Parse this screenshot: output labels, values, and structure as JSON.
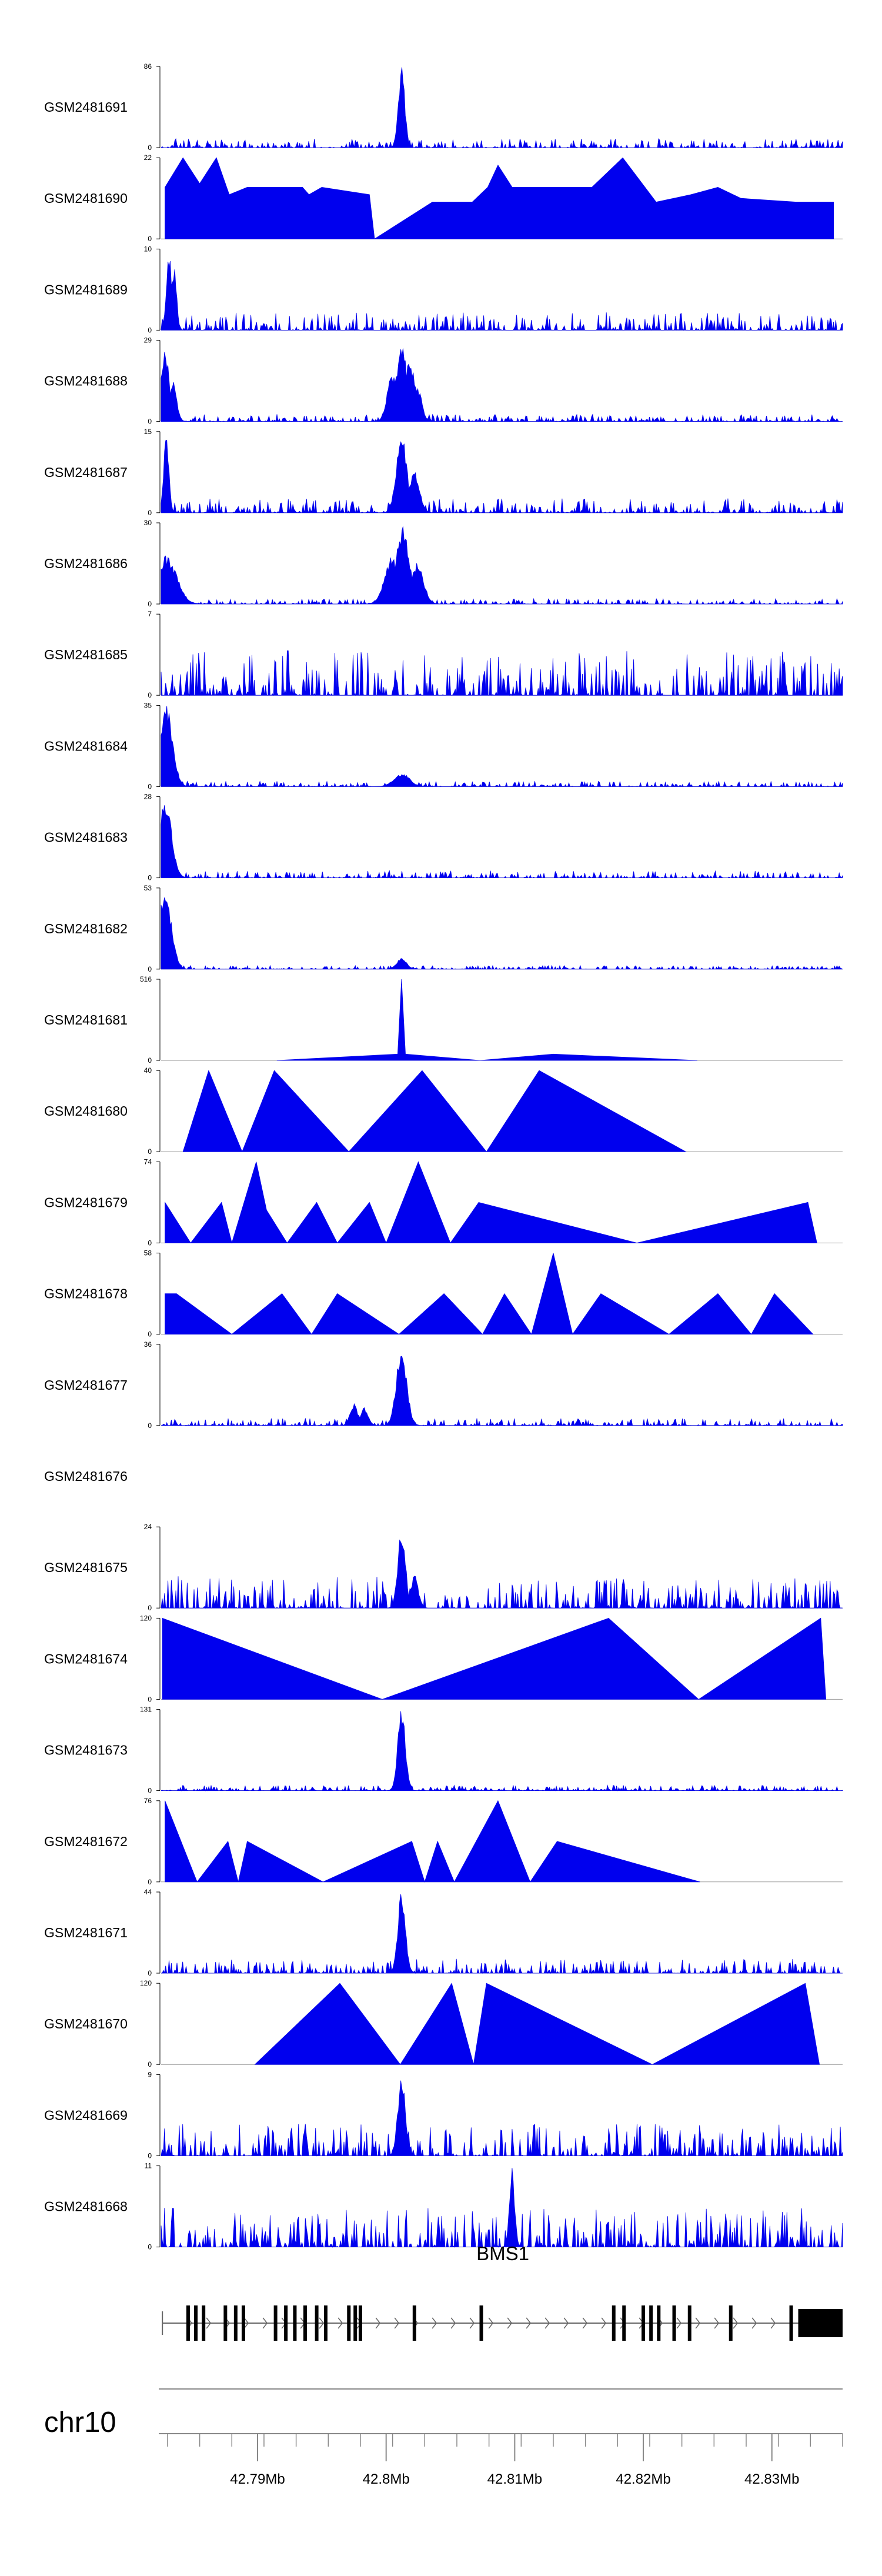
{
  "chart_data": {
    "type": "area",
    "title": "",
    "colors": {
      "signal": "#0000ee",
      "axis": "#000000",
      "track": "#999999",
      "gene": "#000000"
    },
    "region": {
      "chromosome": "chr10",
      "start_mb": 42.7825,
      "end_mb": 42.8355
    },
    "x_ticks": [
      {
        "value": 42.79,
        "label": "42.79Mb"
      },
      {
        "value": 42.8,
        "label": "42.8Mb"
      },
      {
        "value": 42.81,
        "label": "42.81Mb"
      },
      {
        "value": 42.82,
        "label": "42.82Mb"
      },
      {
        "value": 42.83,
        "label": "42.83Mb"
      }
    ],
    "gene": {
      "name": "BMS1",
      "strand": "+",
      "start_mb": 42.7826,
      "end_mb": 42.8355,
      "exons_mb": [
        42.7846,
        42.7852,
        42.7858,
        42.7875,
        42.7883,
        42.7889,
        42.7914,
        42.7922,
        42.7929,
        42.7937,
        42.7946,
        42.7953,
        42.7971,
        42.7976,
        42.798,
        42.8022,
        42.8074,
        42.8177,
        42.8185,
        42.82,
        42.8206,
        42.8212,
        42.8224,
        42.8236,
        42.8268
      ],
      "utr_end_start_mb": 42.8315
    },
    "series": [
      {
        "name": "GSM2481691",
        "ymax": 86,
        "ymin": 0,
        "pattern": "noise",
        "base": 0.05,
        "peaks": [
          [
            42.8012,
            86,
            0.00025
          ]
        ]
      },
      {
        "name": "GSM2481690",
        "ymax": 22,
        "ymin": 0,
        "pattern": "tri",
        "base": 0,
        "peaks": [
          [
            42.7828,
            14
          ],
          [
            42.7842,
            22
          ],
          [
            42.7855,
            15
          ],
          [
            42.7868,
            22
          ],
          [
            42.7878,
            12
          ],
          [
            42.7892,
            14
          ],
          [
            42.7908,
            14
          ],
          [
            42.7924,
            14
          ],
          [
            42.7935,
            14
          ],
          [
            42.794,
            12
          ],
          [
            42.795,
            14
          ],
          [
            42.7987,
            12
          ],
          [
            42.7991,
            0
          ],
          [
            42.8036,
            10
          ],
          [
            42.8067,
            10
          ],
          [
            42.8079,
            14
          ],
          [
            42.8087,
            20
          ],
          [
            42.8098,
            14
          ],
          [
            42.811,
            14
          ],
          [
            42.8123,
            14
          ],
          [
            42.8136,
            14
          ],
          [
            42.8151,
            14
          ],
          [
            42.816,
            14
          ],
          [
            42.8184,
            22
          ],
          [
            42.821,
            10
          ],
          [
            42.8237,
            12
          ],
          [
            42.8258,
            14
          ],
          [
            42.8276,
            11
          ],
          [
            42.8319,
            10
          ],
          [
            42.8348,
            10
          ]
        ]
      },
      {
        "name": "GSM2481689",
        "ymax": 10,
        "ymin": 0,
        "pattern": "noise",
        "base": 0.1,
        "peaks": [
          [
            42.7831,
            10,
            0.0002
          ],
          [
            42.7835,
            8,
            0.0002
          ]
        ]
      },
      {
        "name": "GSM2481688",
        "ymax": 29,
        "ymin": 0,
        "pattern": "noise",
        "base": 0.04,
        "peaks": [
          [
            42.7828,
            27,
            0.0003
          ],
          [
            42.7834,
            15,
            0.0003
          ],
          [
            42.8005,
            18,
            0.0004
          ],
          [
            42.8012,
            29,
            0.0004
          ],
          [
            42.8018,
            22,
            0.0005
          ],
          [
            42.8025,
            12,
            0.0003
          ]
        ]
      },
      {
        "name": "GSM2481687",
        "ymax": 15,
        "ymin": 0,
        "pattern": "noise",
        "base": 0.08,
        "peaks": [
          [
            42.7829,
            15,
            0.0002
          ],
          [
            42.8012,
            15,
            0.0004
          ],
          [
            42.8022,
            8,
            0.0004
          ]
        ]
      },
      {
        "name": "GSM2481686",
        "ymax": 30,
        "ymin": 0,
        "pattern": "noise",
        "base": 0.03,
        "peaks": [
          [
            42.7829,
            18,
            0.0008
          ],
          [
            42.8005,
            18,
            0.0006
          ],
          [
            42.8013,
            30,
            0.0005
          ],
          [
            42.8024,
            16,
            0.0005
          ]
        ]
      },
      {
        "name": "GSM2481685",
        "ymax": 7,
        "ymin": 0,
        "pattern": "noise",
        "base": 0.25,
        "peaks": []
      },
      {
        "name": "GSM2481684",
        "ymax": 35,
        "ymin": 0,
        "pattern": "noise",
        "base": 0.03,
        "peaks": [
          [
            42.7829,
            35,
            0.0005
          ],
          [
            42.8012,
            6,
            0.0006
          ]
        ]
      },
      {
        "name": "GSM2481683",
        "ymax": 28,
        "ymin": 0,
        "pattern": "noise",
        "base": 0.04,
        "peaks": [
          [
            42.7828,
            28,
            0.0005
          ]
        ]
      },
      {
        "name": "GSM2481682",
        "ymax": 53,
        "ymin": 0,
        "pattern": "noise",
        "base": 0.02,
        "peaks": [
          [
            42.7828,
            53,
            0.0005
          ],
          [
            42.8012,
            7,
            0.0004
          ]
        ]
      },
      {
        "name": "GSM2481681",
        "ymax": 516,
        "ymin": 0,
        "pattern": "tri",
        "base": 0,
        "peaks": [
          [
            42.7915,
            0
          ],
          [
            42.8009,
            40
          ],
          [
            42.8012,
            516
          ],
          [
            42.8015,
            40
          ],
          [
            42.8073,
            0
          ],
          [
            42.813,
            40
          ],
          [
            42.8242,
            0
          ]
        ]
      },
      {
        "name": "GSM2481680",
        "ymax": 40,
        "ymin": 0,
        "pattern": "tri",
        "base": 0,
        "peaks": [
          [
            42.7842,
            0
          ],
          [
            42.7862,
            40
          ],
          [
            42.7888,
            0
          ],
          [
            42.7913,
            40
          ],
          [
            42.7971,
            0
          ],
          [
            42.8028,
            40
          ],
          [
            42.8078,
            0
          ],
          [
            42.8119,
            40
          ],
          [
            42.8233,
            0
          ]
        ]
      },
      {
        "name": "GSM2481679",
        "ymax": 74,
        "ymin": 0,
        "pattern": "tri",
        "base": 0,
        "peaks": [
          [
            42.7828,
            37
          ],
          [
            42.7848,
            0
          ],
          [
            42.7872,
            37
          ],
          [
            42.788,
            0
          ],
          [
            42.7899,
            74
          ],
          [
            42.7907,
            30
          ],
          [
            42.7923,
            0
          ],
          [
            42.7946,
            37
          ],
          [
            42.7962,
            0
          ],
          [
            42.7987,
            37
          ],
          [
            42.8,
            0
          ],
          [
            42.8025,
            74
          ],
          [
            42.805,
            0
          ],
          [
            42.8072,
            37
          ],
          [
            42.8195,
            0
          ],
          [
            42.8328,
            37
          ],
          [
            42.8335,
            0
          ]
        ]
      },
      {
        "name": "GSM2481678",
        "ymax": 58,
        "ymin": 0,
        "pattern": "tri",
        "base": 0,
        "peaks": [
          [
            42.7828,
            29
          ],
          [
            42.7837,
            29
          ],
          [
            42.788,
            0
          ],
          [
            42.7919,
            29
          ],
          [
            42.7942,
            0
          ],
          [
            42.7962,
            29
          ],
          [
            42.801,
            0
          ],
          [
            42.8045,
            29
          ],
          [
            42.8075,
            0
          ],
          [
            42.8092,
            29
          ],
          [
            42.8113,
            0
          ],
          [
            42.813,
            58
          ],
          [
            42.8145,
            0
          ],
          [
            42.8167,
            29
          ],
          [
            42.822,
            0
          ],
          [
            42.8258,
            29
          ],
          [
            42.8284,
            0
          ],
          [
            42.8302,
            29
          ],
          [
            42.8332,
            0
          ]
        ]
      },
      {
        "name": "GSM2481677",
        "ymax": 36,
        "ymin": 0,
        "pattern": "noise",
        "base": 0.04,
        "peaks": [
          [
            42.8012,
            36,
            0.0004
          ],
          [
            42.7975,
            10,
            0.0003
          ],
          [
            42.7983,
            8,
            0.0003
          ]
        ]
      },
      {
        "name": "GSM2481676",
        "ymax": null,
        "ymin": null,
        "pattern": "empty",
        "base": 0,
        "peaks": []
      },
      {
        "name": "GSM2481675",
        "ymax": 24,
        "ymin": 0,
        "pattern": "noise",
        "base": 0.18,
        "peaks": [
          [
            42.8012,
            24,
            0.0003
          ],
          [
            42.8022,
            10,
            0.0003
          ]
        ]
      },
      {
        "name": "GSM2481674",
        "ymax": 120,
        "ymin": 0,
        "pattern": "tri",
        "base": 0,
        "peaks": [
          [
            42.7826,
            120
          ],
          [
            42.7997,
            0
          ],
          [
            42.8173,
            120
          ],
          [
            42.8243,
            0
          ],
          [
            42.8338,
            120
          ],
          [
            42.8342,
            0
          ]
        ]
      },
      {
        "name": "GSM2481673",
        "ymax": 131,
        "ymin": 0,
        "pattern": "noise",
        "base": 0.03,
        "peaks": [
          [
            42.8012,
            131,
            0.0003
          ]
        ]
      },
      {
        "name": "GSM2481672",
        "ymax": 76,
        "ymin": 0,
        "pattern": "tri",
        "base": 0,
        "peaks": [
          [
            42.7828,
            76
          ],
          [
            42.7853,
            0
          ],
          [
            42.7877,
            38
          ],
          [
            42.7885,
            0
          ],
          [
            42.7892,
            38
          ],
          [
            42.7951,
            0
          ],
          [
            42.802,
            38
          ],
          [
            42.803,
            0
          ],
          [
            42.804,
            38
          ],
          [
            42.8053,
            0
          ],
          [
            42.8087,
            76
          ],
          [
            42.8112,
            0
          ],
          [
            42.8133,
            38
          ],
          [
            42.8244,
            0
          ]
        ]
      },
      {
        "name": "GSM2481671",
        "ymax": 44,
        "ymin": 0,
        "pattern": "noise",
        "base": 0.08,
        "peaks": [
          [
            42.8012,
            44,
            0.0003
          ]
        ]
      },
      {
        "name": "GSM2481670",
        "ymax": 120,
        "ymin": 0,
        "pattern": "tri",
        "base": 0,
        "peaks": [
          [
            42.7898,
            0
          ],
          [
            42.7964,
            120
          ],
          [
            42.8011,
            0
          ],
          [
            42.8051,
            120
          ],
          [
            42.8068,
            0
          ],
          [
            42.8078,
            120
          ],
          [
            42.8207,
            0
          ],
          [
            42.8326,
            120
          ],
          [
            42.8337,
            0
          ]
        ]
      },
      {
        "name": "GSM2481669",
        "ymax": 9,
        "ymin": 0,
        "pattern": "noise",
        "base": 0.18,
        "peaks": [
          [
            42.8012,
            9,
            0.0003
          ]
        ]
      },
      {
        "name": "GSM2481668",
        "ymax": 11,
        "ymin": 0,
        "pattern": "noise",
        "base": 0.22,
        "peaks": [
          [
            42.8098,
            11,
            0.0002
          ]
        ]
      }
    ]
  }
}
